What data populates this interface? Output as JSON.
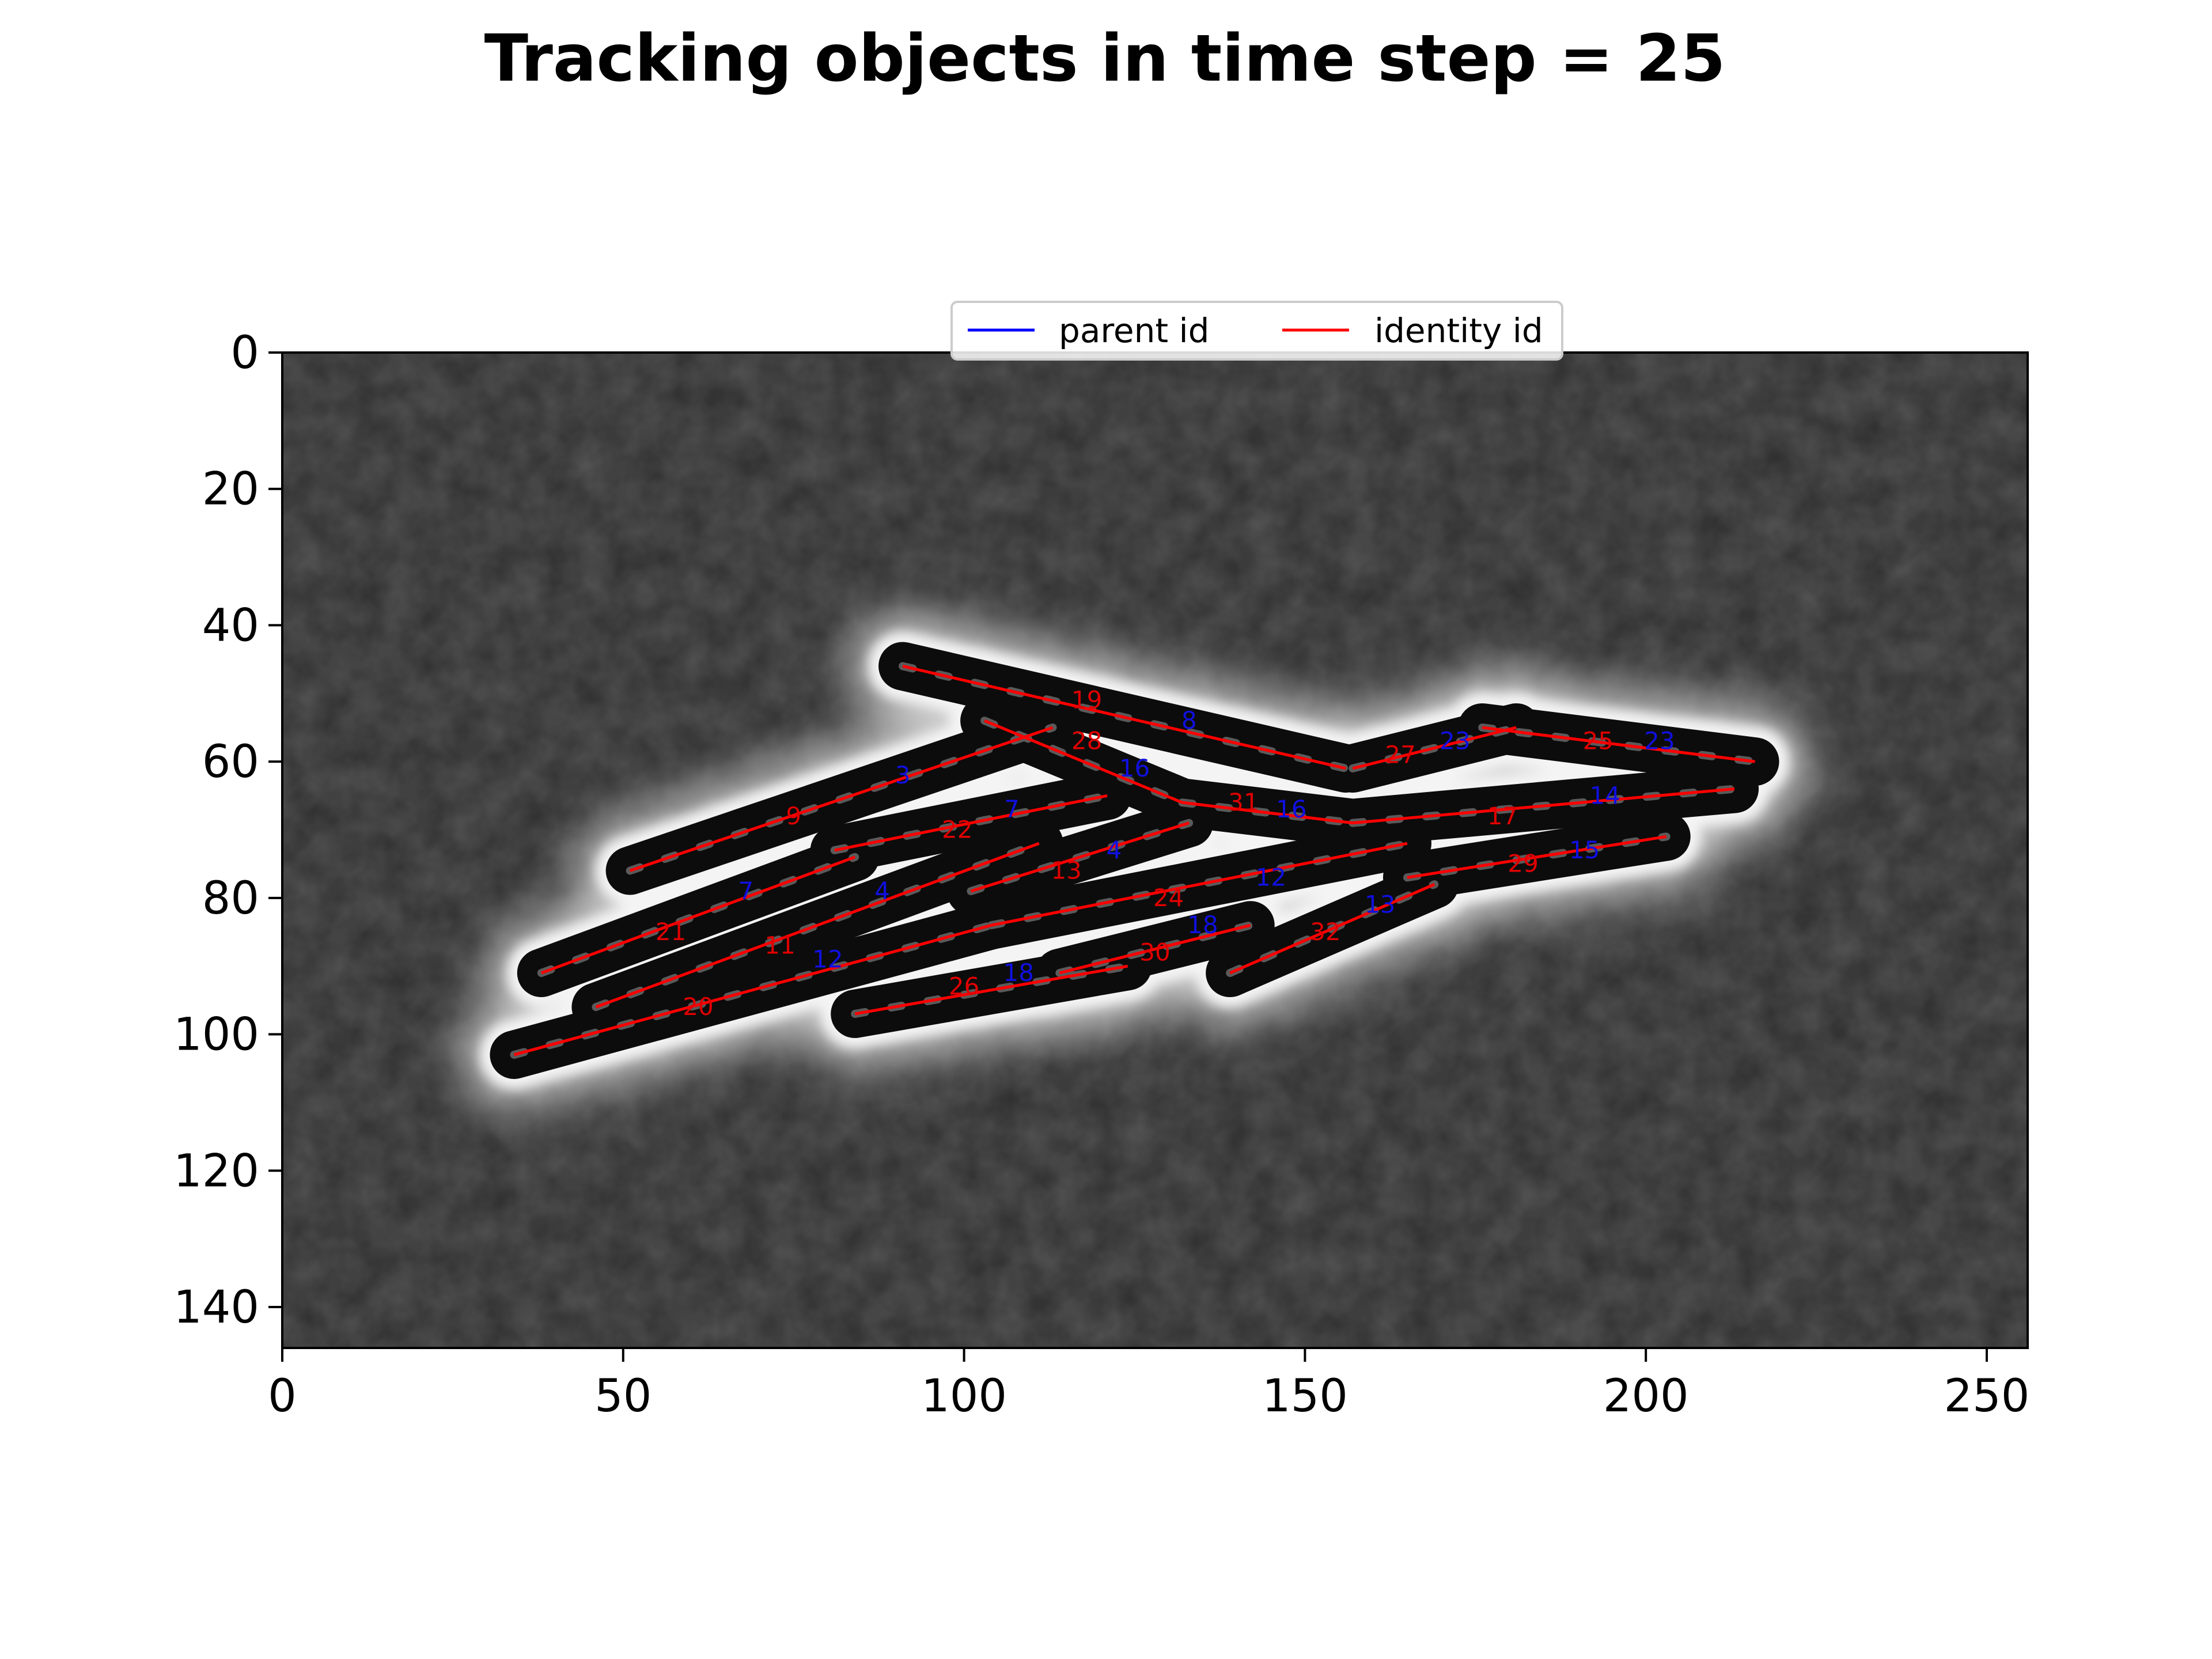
{
  "chart_data": {
    "type": "scatter",
    "title": "Tracking objects in time step = 25",
    "xlabel": "",
    "ylabel": "",
    "xlim": [
      0,
      256
    ],
    "ylim": [
      146,
      0
    ],
    "x_ticks": [
      0,
      50,
      100,
      150,
      200,
      250
    ],
    "y_ticks": [
      0,
      20,
      40,
      60,
      80,
      100,
      120,
      140
    ],
    "x_tick_labels": [
      "0",
      "50",
      "100",
      "150",
      "200",
      "250"
    ],
    "y_tick_labels": [
      "0",
      "20",
      "40",
      "60",
      "80",
      "100",
      "120",
      "140"
    ],
    "legend": {
      "placement": "top-center",
      "entries": [
        {
          "label": "parent id",
          "color": "#0000ff"
        },
        {
          "label": "identity id",
          "color": "#ff0000"
        }
      ]
    },
    "series": [
      {
        "name": "identity id",
        "color": "#ff0000",
        "segments": [
          {
            "id": "19",
            "x1": 91,
            "y1": 46,
            "x2": 156,
            "y2": 61,
            "lx": 118,
            "ly": 51
          },
          {
            "id": "28",
            "x1": 103,
            "y1": 54,
            "x2": 132,
            "y2": 66,
            "lx": 118,
            "ly": 57
          },
          {
            "id": "31",
            "x1": 132,
            "y1": 66,
            "x2": 157,
            "y2": 69,
            "lx": 141,
            "ly": 66
          },
          {
            "id": "27",
            "x1": 157,
            "y1": 61,
            "x2": 181,
            "y2": 55,
            "lx": 164,
            "ly": 59
          },
          {
            "id": "25",
            "x1": 176,
            "y1": 55,
            "x2": 216,
            "y2": 60,
            "lx": 193,
            "ly": 57
          },
          {
            "id": "17",
            "x1": 157,
            "y1": 69,
            "x2": 213,
            "y2": 64,
            "lx": 179,
            "ly": 68
          },
          {
            "id": "9",
            "x1": 51,
            "y1": 76,
            "x2": 113,
            "y2": 55,
            "lx": 75,
            "ly": 68
          },
          {
            "id": "22",
            "x1": 81,
            "y1": 73,
            "x2": 121,
            "y2": 65,
            "lx": 99,
            "ly": 70
          },
          {
            "id": "21",
            "x1": 38,
            "y1": 91,
            "x2": 84,
            "y2": 74,
            "lx": 57,
            "ly": 85
          },
          {
            "id": "11",
            "x1": 46,
            "y1": 96,
            "x2": 111,
            "y2": 72,
            "lx": 73,
            "ly": 87
          },
          {
            "id": "13",
            "x1": 101,
            "y1": 79,
            "x2": 133,
            "y2": 69,
            "lx": 115,
            "ly": 76
          },
          {
            "id": "29",
            "x1": 165,
            "y1": 77,
            "x2": 203,
            "y2": 71,
            "lx": 182,
            "ly": 75
          },
          {
            "id": "24",
            "x1": 104,
            "y1": 84,
            "x2": 165,
            "y2": 72,
            "lx": 130,
            "ly": 80
          },
          {
            "id": "20",
            "x1": 34,
            "y1": 103,
            "x2": 104,
            "y2": 84,
            "lx": 61,
            "ly": 96
          },
          {
            "id": "30",
            "x1": 114,
            "y1": 91,
            "x2": 142,
            "y2": 84,
            "lx": 128,
            "ly": 88
          },
          {
            "id": "32",
            "x1": 139,
            "y1": 91,
            "x2": 169,
            "y2": 78,
            "lx": 153,
            "ly": 85
          },
          {
            "id": "26",
            "x1": 84,
            "y1": 97,
            "x2": 124,
            "y2": 90,
            "lx": 100,
            "ly": 93
          }
        ]
      },
      {
        "name": "parent id",
        "color": "#0000ff",
        "labels": [
          {
            "id": "8",
            "x": 133,
            "y": 54
          },
          {
            "id": "23",
            "x": 172,
            "y": 57
          },
          {
            "id": "23",
            "x": 202,
            "y": 57
          },
          {
            "id": "16",
            "x": 125,
            "y": 61
          },
          {
            "id": "16",
            "x": 148,
            "y": 67
          },
          {
            "id": "3",
            "x": 91,
            "y": 62
          },
          {
            "id": "7",
            "x": 107,
            "y": 67
          },
          {
            "id": "14",
            "x": 194,
            "y": 65
          },
          {
            "id": "4",
            "x": 122,
            "y": 73
          },
          {
            "id": "15",
            "x": 191,
            "y": 73
          },
          {
            "id": "7",
            "x": 68,
            "y": 79
          },
          {
            "id": "4",
            "x": 88,
            "y": 79
          },
          {
            "id": "12",
            "x": 145,
            "y": 77
          },
          {
            "id": "13",
            "x": 161,
            "y": 81
          },
          {
            "id": "12",
            "x": 80,
            "y": 89
          },
          {
            "id": "18",
            "x": 135,
            "y": 84
          },
          {
            "id": "18",
            "x": 108,
            "y": 91
          }
        ]
      }
    ],
    "background_image": "grayscale phase-contrast microscopy of a rod-shaped cell colony",
    "grid": false
  }
}
